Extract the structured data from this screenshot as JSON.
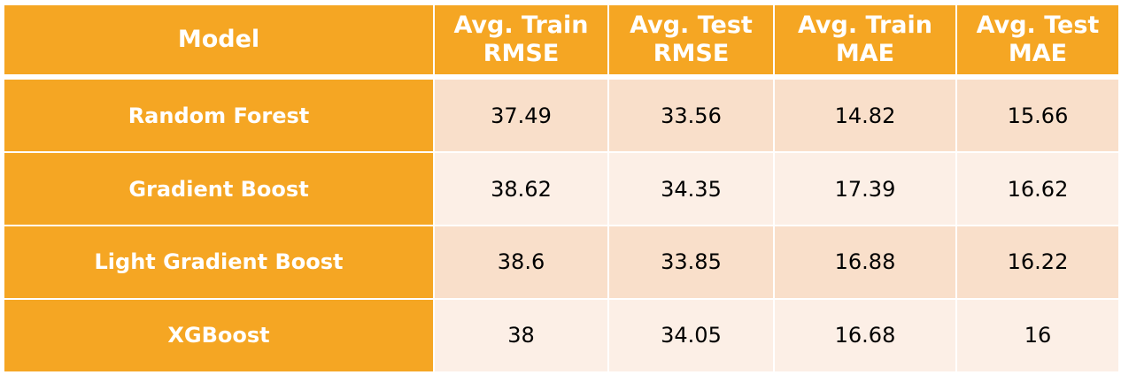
{
  "table": {
    "headers": {
      "model": "Model",
      "train_rmse": [
        "Avg. Train",
        "RMSE"
      ],
      "test_rmse": [
        "Avg. Test",
        "RMSE"
      ],
      "train_mae": [
        "Avg. Train",
        "MAE"
      ],
      "test_mae": [
        "Avg. Test",
        "MAE"
      ]
    },
    "rows": [
      {
        "model": "Random Forest",
        "train_rmse": "37.49",
        "test_rmse": "33.56",
        "train_mae": "14.82",
        "test_mae": "15.66"
      },
      {
        "model": "Gradient Boost",
        "train_rmse": "38.62",
        "test_rmse": "34.35",
        "train_mae": "17.39",
        "test_mae": "16.62"
      },
      {
        "model": "Light Gradient Boost",
        "train_rmse": "38.6",
        "test_rmse": "33.85",
        "train_mae": "16.88",
        "test_mae": "16.22"
      },
      {
        "model": "XGBoost",
        "train_rmse": "38",
        "test_rmse": "34.05",
        "train_mae": "16.68",
        "test_mae": "16"
      }
    ]
  },
  "colors": {
    "header_bg": "#f5a623",
    "row_odd_bg": "#f9dfca",
    "row_even_bg": "#fcefe6"
  }
}
